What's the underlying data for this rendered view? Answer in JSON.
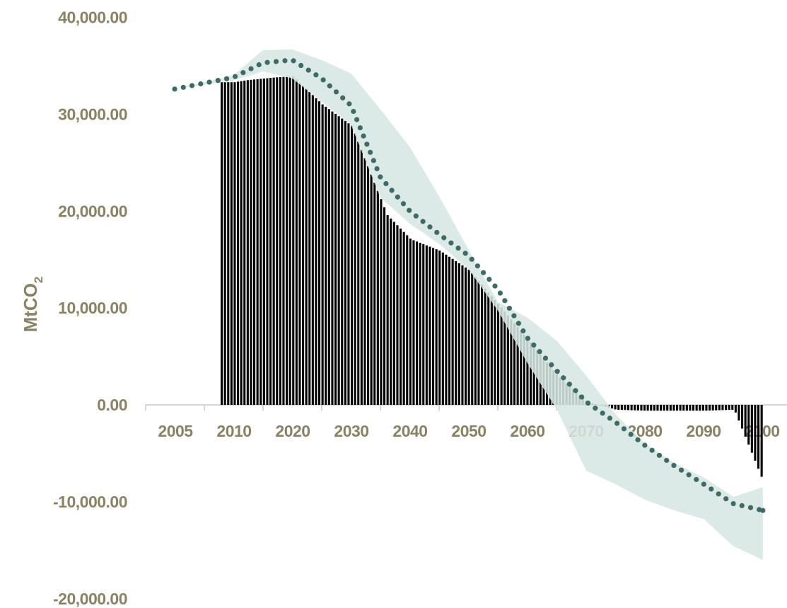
{
  "chart_data": {
    "type": "area",
    "title": "",
    "ylabel": "MtCO",
    "ylabel_subscript": "2",
    "xlabel": "",
    "categories": [
      "2005",
      "2010",
      "2020",
      "2030",
      "2040",
      "2050",
      "2060",
      "2070",
      "2080",
      "2090",
      "2100"
    ],
    "y_ticks": [
      "40,000.00",
      "30,000.00",
      "20,000.00",
      "10,000.00",
      "0.00",
      "-10,000.00",
      "-20,000.00"
    ],
    "y_tick_values": [
      40000,
      30000,
      20000,
      10000,
      0,
      -10000,
      -20000
    ],
    "ylim": [
      -20000,
      40000
    ],
    "grid": false,
    "legend": "none",
    "colors": {
      "bars": "#000000",
      "band": "#d6e6e4",
      "dots": "#3f6a66",
      "tick_text": "#8a8265",
      "axis": "#c8c8c8"
    },
    "series": [
      {
        "kind": "area",
        "x": [
          2010,
          2012,
          2017,
          2020,
          2025,
          2030,
          2036,
          2040,
          2045,
          2050,
          2055,
          2060,
          2065,
          2070,
          2075,
          2080,
          2085,
          2090,
          2095,
          2100
        ],
        "values": [
          33300,
          33500,
          33800,
          33900,
          31000,
          28800,
          19600,
          17100,
          15900,
          13900,
          10300,
          6700,
          3000,
          300,
          -500,
          -600,
          -600,
          -600,
          -500,
          -8000
        ]
      },
      {
        "kind": "band",
        "x": [
          2005,
          2010,
          2015,
          2020,
          2025,
          2030,
          2035,
          2040,
          2045,
          2050,
          2055,
          2060,
          2065,
          2070,
          2075,
          2080,
          2085,
          2090,
          2095,
          2100
        ],
        "upper": [
          32600,
          34000,
          36600,
          36700,
          35600,
          34200,
          30500,
          26600,
          21500,
          16000,
          10600,
          9000,
          6600,
          3000,
          -1000,
          -4000,
          -6000,
          -7500,
          -9500,
          -8500
        ],
        "lower": [
          32600,
          33500,
          34400,
          33700,
          31300,
          28900,
          21400,
          18700,
          16600,
          14000,
          9700,
          4300,
          -500,
          -6800,
          -8200,
          -9800,
          -10900,
          -11800,
          -14600,
          -16000
        ]
      },
      {
        "kind": "dotted-line",
        "x": [
          2005,
          2010,
          2015,
          2020,
          2025,
          2030,
          2035,
          2040,
          2045,
          2050,
          2055,
          2060,
          2065,
          2070,
          2075,
          2080,
          2085,
          2090,
          2095,
          2100
        ],
        "values": [
          32600,
          33800,
          35300,
          35600,
          33700,
          30900,
          23500,
          20000,
          17600,
          15400,
          11900,
          6900,
          3500,
          300,
          -1800,
          -4200,
          -6300,
          -8200,
          -10200,
          -10900
        ]
      }
    ]
  }
}
